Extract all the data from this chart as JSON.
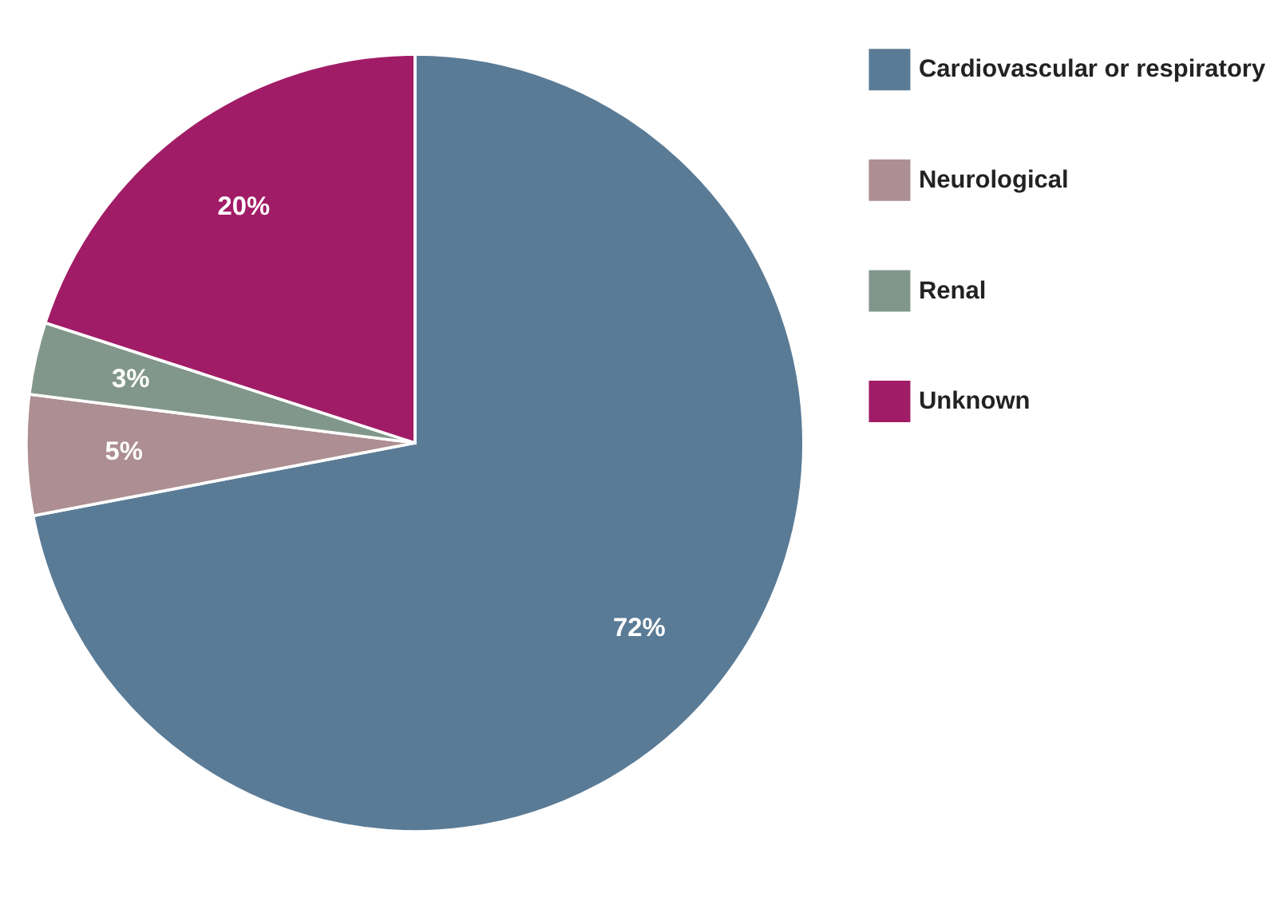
{
  "chart_data": {
    "type": "pie",
    "categories": [
      "Cardiovascular or respiratory",
      "Neurological",
      "Renal",
      "Unknown"
    ],
    "values": [
      72,
      5,
      3,
      20
    ],
    "colors": [
      "#5a7b96",
      "#ad8e92",
      "#82978c",
      "#a11c66"
    ],
    "value_labels": [
      "72%",
      "5%",
      "3%",
      "20%"
    ],
    "legend": "top right"
  }
}
